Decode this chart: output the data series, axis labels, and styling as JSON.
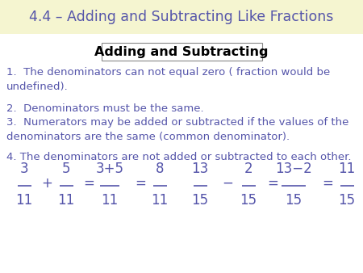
{
  "title": "4.4 – Adding and Subtracting Like Fractions",
  "subtitle": "Adding and Subtracting",
  "title_color": "#5555aa",
  "text_color": "#5555aa",
  "title_bg": "#f5f5d0",
  "body_bg": "#ffffff",
  "point1": "1.  The denominators can not equal zero ( fraction would be\nundefined).",
  "point2": "2.  Denominators must be the same.",
  "point3": "3.  Numerators may be added or subtracted if the values of the\ndenominators are the same (common denominator).",
  "point4": "4. The denominators are not added or subtracted to each other.",
  "font_size_title": 12.5,
  "font_size_subtitle": 11.5,
  "font_size_body": 9.5,
  "font_size_math": 12
}
